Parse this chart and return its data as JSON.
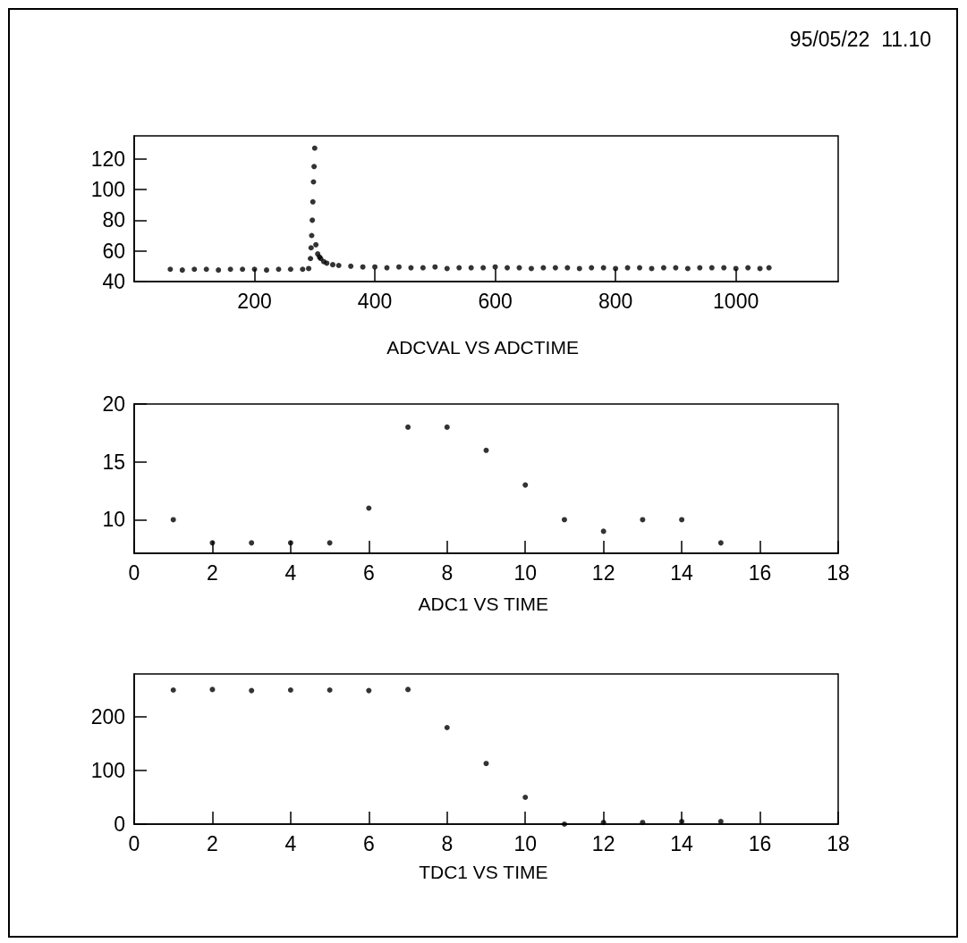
{
  "chart_data": [
    {
      "type": "scatter",
      "title": "ADCVAL VS ADCTIME",
      "annotations": [
        "95/05/22  11.10"
      ],
      "color": "#000000",
      "marker": "circle",
      "grid": false,
      "x": [
        60,
        80,
        100,
        120,
        140,
        160,
        180,
        200,
        220,
        240,
        260,
        280,
        290,
        293,
        294,
        295,
        296,
        297,
        298,
        299,
        300,
        302,
        305,
        308,
        310,
        315,
        320,
        330,
        340,
        360,
        380,
        400,
        420,
        440,
        460,
        480,
        500,
        520,
        540,
        560,
        580,
        600,
        620,
        640,
        660,
        680,
        700,
        720,
        740,
        760,
        780,
        800,
        820,
        840,
        860,
        880,
        900,
        920,
        940,
        960,
        980,
        1000,
        1020,
        1040,
        1055
      ],
      "values": [
        48,
        47.5,
        48,
        48,
        47.5,
        48,
        48,
        48,
        47.5,
        48,
        48,
        48,
        48.5,
        55,
        62,
        70,
        80,
        92,
        105,
        115,
        127,
        64,
        58,
        56,
        55,
        53,
        52,
        51,
        50.5,
        50,
        49.5,
        49.5,
        49,
        49.5,
        49,
        49,
        49.5,
        48.5,
        49,
        49,
        49,
        49.5,
        49,
        49,
        48.5,
        49,
        49,
        49,
        48.5,
        49,
        49,
        48.5,
        49,
        49,
        48.5,
        49,
        49,
        48.5,
        49,
        49,
        49,
        48.5,
        49,
        48.5,
        49
      ],
      "xlim": [
        0,
        1170
      ],
      "xticks": [
        200,
        400,
        600,
        800,
        1000
      ],
      "ylim": [
        40,
        135
      ],
      "yticks": [
        40,
        60,
        80,
        100,
        120
      ]
    },
    {
      "type": "scatter",
      "title": "ADC1 VS TIME",
      "color": "#000000",
      "marker": "circle",
      "grid": false,
      "x": [
        1,
        2,
        3,
        4,
        5,
        6,
        7,
        8,
        9,
        10,
        11,
        12,
        13,
        14,
        15
      ],
      "values": [
        10,
        8,
        8,
        8,
        8,
        11,
        18,
        18,
        16,
        13,
        10,
        9,
        10,
        10,
        8
      ],
      "xlim": [
        0,
        18
      ],
      "xticks": [
        0,
        2,
        4,
        6,
        8,
        10,
        12,
        14,
        16,
        18
      ],
      "ylim": [
        7.1,
        20
      ],
      "yticks": [
        10,
        15,
        20
      ]
    },
    {
      "type": "scatter",
      "title": "TDC1 VS TIME",
      "color": "#000000",
      "marker": "circle",
      "grid": false,
      "x": [
        1,
        2,
        3,
        4,
        5,
        6,
        7,
        8,
        9,
        10,
        11,
        12,
        13,
        14,
        15
      ],
      "values": [
        250,
        251,
        249,
        250,
        250,
        249,
        251,
        180,
        113,
        50,
        0,
        3,
        3,
        5,
        5
      ],
      "xlim": [
        0,
        18
      ],
      "xticks": [
        0,
        2,
        4,
        6,
        8,
        10,
        12,
        14,
        16,
        18
      ],
      "ylim": [
        0,
        280
      ],
      "yticks": [
        0,
        100,
        200
      ]
    }
  ]
}
